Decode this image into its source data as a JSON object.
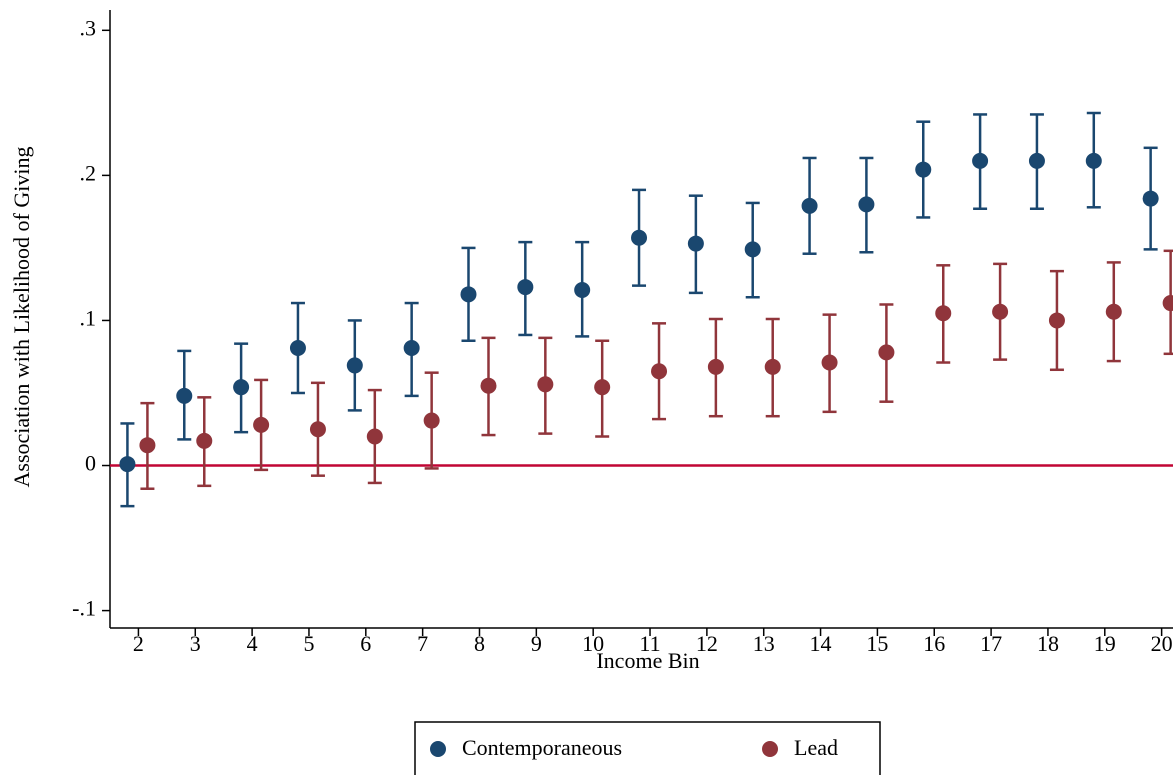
{
  "chart_data": {
    "type": "scatter",
    "x_label": "Income Bin",
    "y_label": "Association with Likelihood of Giving",
    "x": [
      2,
      3,
      4,
      5,
      6,
      7,
      8,
      9,
      10,
      11,
      12,
      13,
      14,
      15,
      16,
      17,
      18,
      19,
      20
    ],
    "xlim": [
      1.5,
      20.2
    ],
    "xticks": [
      2,
      3,
      4,
      5,
      6,
      7,
      8,
      9,
      10,
      11,
      12,
      13,
      14,
      15,
      16,
      17,
      18,
      19,
      20
    ],
    "ylim": [
      -0.112,
      0.314
    ],
    "yticks": [
      {
        "value": 0.3,
        "label": ".3"
      },
      {
        "value": 0.2,
        "label": ".2"
      },
      {
        "value": 0.1,
        "label": ".1"
      },
      0,
      {
        "value": -0.1,
        "label": "-.1"
      }
    ],
    "reference_line": {
      "value": 0,
      "color": "#c10534"
    },
    "legend": "bottom",
    "series": [
      {
        "name": "Contemporaneous",
        "color": "#1a476f",
        "values": [
          0.001,
          0.048,
          0.054,
          0.081,
          0.069,
          0.081,
          0.118,
          0.123,
          0.121,
          0.157,
          0.153,
          0.149,
          0.179,
          0.18,
          0.204,
          0.21,
          0.21,
          0.21,
          0.184
        ],
        "upper": [
          0.029,
          0.079,
          0.084,
          0.112,
          0.1,
          0.112,
          0.15,
          0.154,
          0.154,
          0.19,
          0.186,
          0.181,
          0.212,
          0.212,
          0.237,
          0.242,
          0.242,
          0.243,
          0.219
        ],
        "lower": [
          -0.028,
          0.018,
          0.023,
          0.05,
          0.038,
          0.048,
          0.086,
          0.09,
          0.089,
          0.124,
          0.119,
          0.116,
          0.146,
          0.147,
          0.171,
          0.177,
          0.177,
          0.178,
          0.149
        ]
      },
      {
        "name": "Lead",
        "color": "#90353b",
        "values": [
          0.014,
          0.017,
          0.028,
          0.025,
          0.02,
          0.031,
          0.055,
          0.056,
          0.054,
          0.065,
          0.068,
          0.068,
          0.071,
          0.078,
          0.105,
          0.106,
          0.1,
          0.106,
          0.112
        ],
        "upper": [
          0.043,
          0.047,
          0.059,
          0.057,
          0.052,
          0.064,
          0.088,
          0.088,
          0.086,
          0.098,
          0.101,
          0.101,
          0.104,
          0.111,
          0.138,
          0.139,
          0.134,
          0.14,
          0.148
        ],
        "lower": [
          -0.016,
          -0.014,
          -0.003,
          -0.007,
          -0.012,
          -0.002,
          0.021,
          0.022,
          0.02,
          0.032,
          0.034,
          0.034,
          0.037,
          0.044,
          0.071,
          0.073,
          0.066,
          0.072,
          0.077
        ]
      }
    ]
  }
}
